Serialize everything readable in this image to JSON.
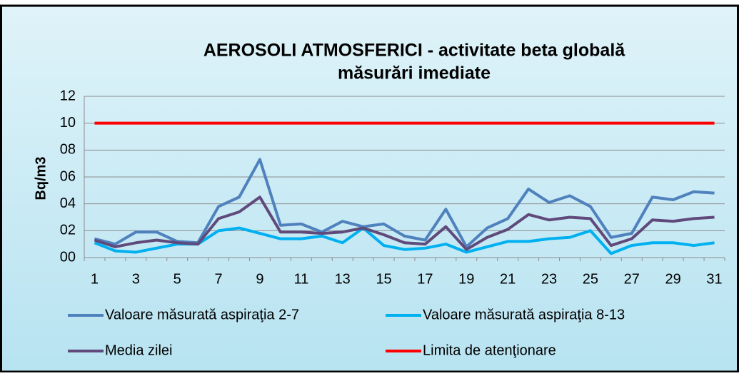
{
  "chart_data": {
    "type": "line",
    "title": "AEROSOLI  ATMOSFERICI - activitate beta globală",
    "subtitle": "măsurări imediate",
    "y_label": "Bq/m3",
    "categories": [
      "1",
      null,
      "3",
      null,
      "5",
      null,
      "7",
      null,
      "9",
      null,
      "11",
      null,
      "13",
      null,
      "15",
      null,
      "17",
      null,
      "19",
      null,
      "21",
      null,
      "23",
      null,
      "25",
      null,
      "27",
      null,
      "29",
      null,
      "31"
    ],
    "series": [
      {
        "name": "Valoare măsurată aspiraţia 2-7",
        "color": "#4f81bd",
        "values": [
          1.4,
          1.0,
          1.9,
          1.9,
          1.2,
          1.1,
          3.8,
          4.5,
          7.3,
          2.4,
          2.5,
          1.9,
          2.7,
          2.3,
          2.5,
          1.6,
          1.3,
          3.6,
          0.8,
          2.2,
          2.9,
          5.1,
          4.1,
          4.6,
          3.8,
          1.5,
          1.8,
          4.5,
          4.3,
          4.9,
          4.8
        ]
      },
      {
        "name": "Valoare măsurată aspiraţia 8-13",
        "color": "#00b0f0",
        "values": [
          1.1,
          0.5,
          0.4,
          0.7,
          1.0,
          1.0,
          2.0,
          2.2,
          1.8,
          1.4,
          1.4,
          1.6,
          1.1,
          2.2,
          0.9,
          0.6,
          0.7,
          1.0,
          0.4,
          0.8,
          1.2,
          1.2,
          1.4,
          1.5,
          2.0,
          0.3,
          0.9,
          1.1,
          1.1,
          0.9,
          1.1
        ]
      },
      {
        "name": "Media zilei",
        "color": "#604a7b",
        "values": [
          1.3,
          0.8,
          1.1,
          1.3,
          1.1,
          1.0,
          2.9,
          3.4,
          4.5,
          1.9,
          1.9,
          1.8,
          1.9,
          2.2,
          1.7,
          1.1,
          1.0,
          2.3,
          0.6,
          1.5,
          2.1,
          3.2,
          2.8,
          3.0,
          2.9,
          0.9,
          1.4,
          2.8,
          2.7,
          2.9,
          3.0
        ]
      },
      {
        "name": "Limita de atenţionare",
        "color": "#ff0000",
        "values": [
          10,
          10,
          10,
          10,
          10,
          10,
          10,
          10,
          10,
          10,
          10,
          10,
          10,
          10,
          10,
          10,
          10,
          10,
          10,
          10,
          10,
          10,
          10,
          10,
          10,
          10,
          10,
          10,
          10,
          10,
          10
        ]
      }
    ],
    "ylim": [
      0,
      12
    ],
    "yticks": [
      {
        "value": 0,
        "label": "00"
      },
      {
        "value": 2,
        "label": "02"
      },
      {
        "value": 4,
        "label": "04"
      },
      {
        "value": 6,
        "label": "06"
      },
      {
        "value": 8,
        "label": "08"
      },
      10,
      12
    ],
    "grid": true
  }
}
